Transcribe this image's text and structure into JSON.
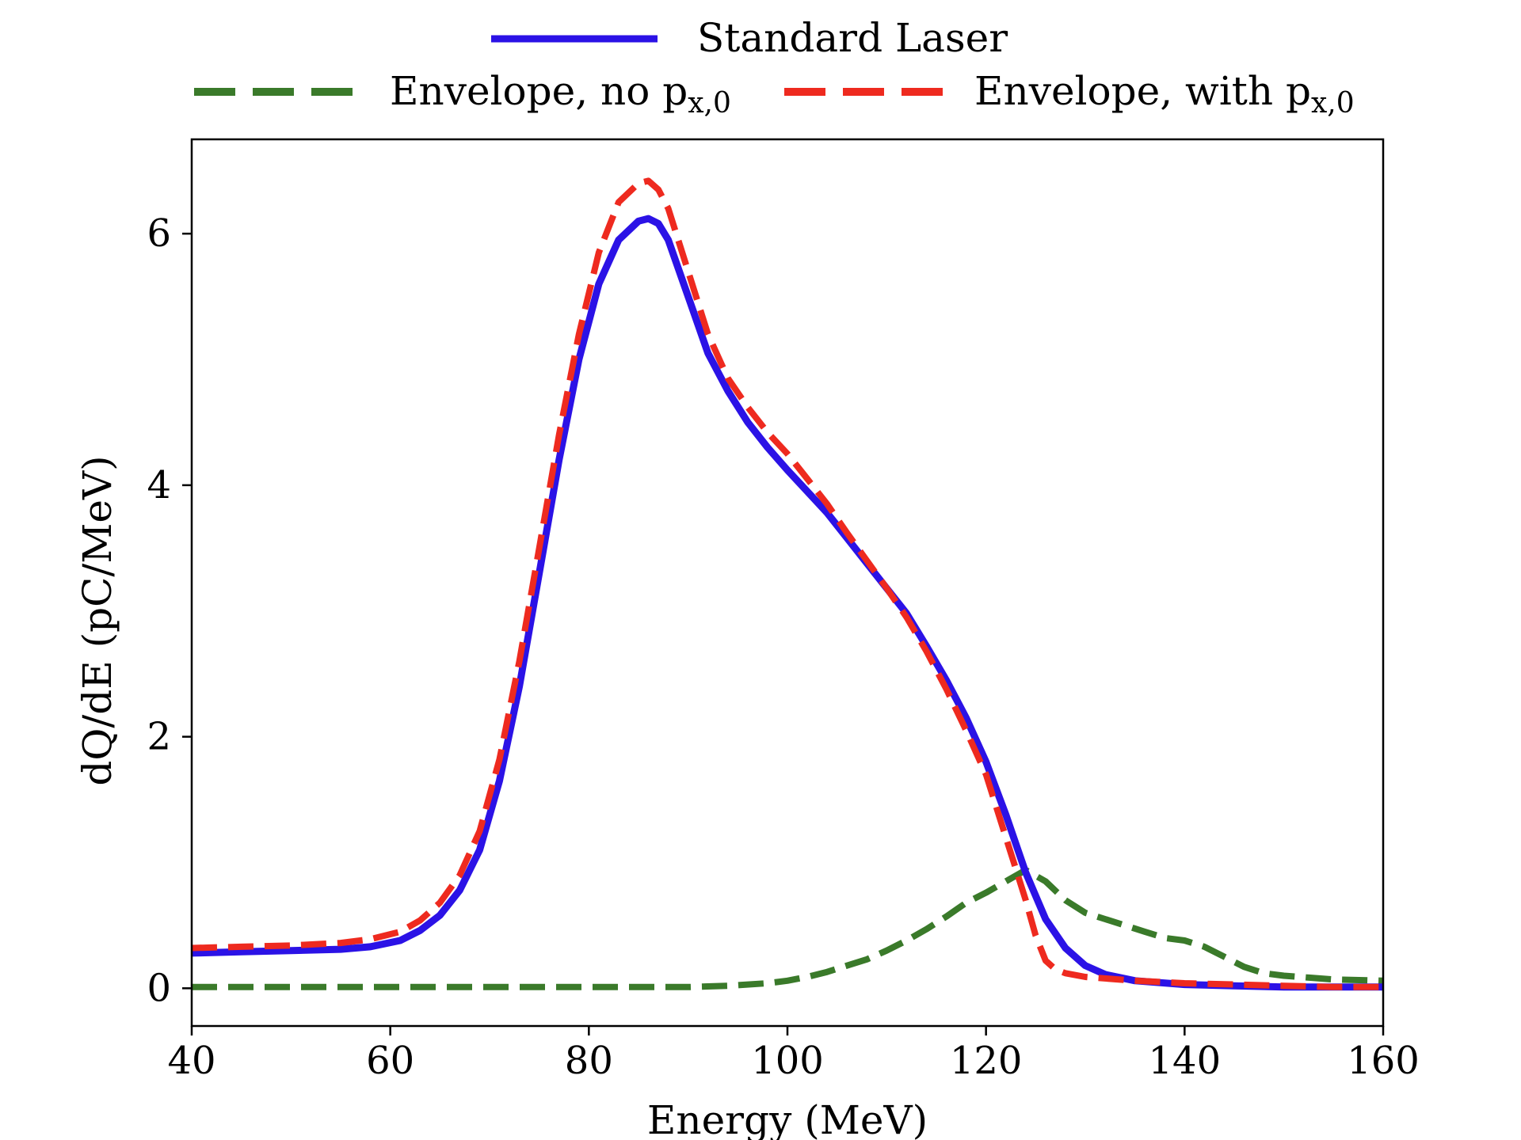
{
  "chart_data": {
    "type": "line",
    "xlabel": "Energy (MeV)",
    "ylabel": "dQ/dE (pC/MeV)",
    "xlim": [
      40,
      160
    ],
    "ylim": [
      -0.3,
      6.75
    ],
    "xticks": [
      40,
      60,
      80,
      100,
      120,
      140,
      160
    ],
    "yticks": [
      0,
      2,
      4,
      6
    ],
    "grid": false,
    "legend_position": "top-center, above plot",
    "series": [
      {
        "name": "Standard Laser",
        "legend_main": "Standard Laser",
        "legend_sub": "",
        "color": "#2b12e6",
        "style": "solid",
        "x": [
          40,
          45,
          50,
          55,
          58,
          61,
          63,
          65,
          67,
          69,
          71,
          73,
          75,
          77,
          79,
          81,
          83,
          85,
          86,
          87,
          88,
          90,
          92,
          94,
          96,
          98,
          100,
          102,
          104,
          106,
          108,
          110,
          112,
          114,
          116,
          118,
          120,
          122,
          124,
          126,
          128,
          130,
          132,
          135,
          140,
          145,
          150,
          155,
          160
        ],
        "y": [
          0.28,
          0.29,
          0.3,
          0.31,
          0.33,
          0.38,
          0.46,
          0.58,
          0.78,
          1.1,
          1.65,
          2.4,
          3.3,
          4.2,
          5.0,
          5.6,
          5.95,
          6.1,
          6.12,
          6.08,
          5.95,
          5.5,
          5.05,
          4.75,
          4.5,
          4.3,
          4.12,
          3.95,
          3.78,
          3.58,
          3.38,
          3.18,
          2.98,
          2.72,
          2.45,
          2.15,
          1.8,
          1.38,
          0.92,
          0.55,
          0.32,
          0.18,
          0.11,
          0.06,
          0.03,
          0.02,
          0.01,
          0.01,
          0.01
        ]
      },
      {
        "name": "Envelope, no px,0",
        "legend_main": "Envelope, no p",
        "legend_sub": "x,0",
        "color": "#3a7a2a",
        "style": "dashed",
        "x": [
          40,
          50,
          60,
          70,
          80,
          90,
          94,
          98,
          100,
          102,
          104,
          106,
          108,
          110,
          112,
          114,
          116,
          118,
          120,
          122,
          124,
          126,
          128,
          130,
          132,
          134,
          136,
          138,
          140,
          142,
          144,
          146,
          148,
          150,
          155,
          160
        ],
        "y": [
          0.01,
          0.01,
          0.01,
          0.01,
          0.01,
          0.01,
          0.02,
          0.04,
          0.06,
          0.09,
          0.13,
          0.18,
          0.23,
          0.3,
          0.38,
          0.47,
          0.57,
          0.68,
          0.76,
          0.85,
          0.94,
          0.85,
          0.7,
          0.6,
          0.55,
          0.5,
          0.45,
          0.4,
          0.38,
          0.33,
          0.25,
          0.17,
          0.12,
          0.1,
          0.07,
          0.06
        ]
      },
      {
        "name": "Envelope, with px,0",
        "legend_main": "Envelope, with p",
        "legend_sub": "x,0",
        "color": "#ee2a1f",
        "style": "dashed",
        "x": [
          40,
          45,
          50,
          55,
          58,
          61,
          63,
          65,
          67,
          69,
          71,
          73,
          75,
          77,
          79,
          81,
          83,
          85,
          86,
          87,
          88,
          90,
          92,
          94,
          96,
          98,
          100,
          102,
          104,
          106,
          108,
          110,
          112,
          114,
          116,
          118,
          120,
          121,
          122,
          123,
          124,
          125,
          126,
          127,
          128,
          130,
          135,
          140,
          145,
          150,
          155,
          160
        ],
        "y": [
          0.32,
          0.33,
          0.34,
          0.36,
          0.39,
          0.45,
          0.54,
          0.68,
          0.9,
          1.25,
          1.82,
          2.6,
          3.5,
          4.4,
          5.2,
          5.85,
          6.25,
          6.4,
          6.42,
          6.35,
          6.2,
          5.7,
          5.2,
          4.85,
          4.62,
          4.42,
          4.25,
          4.05,
          3.85,
          3.62,
          3.4,
          3.18,
          2.95,
          2.68,
          2.38,
          2.05,
          1.7,
          1.45,
          1.2,
          0.95,
          0.7,
          0.42,
          0.22,
          0.15,
          0.12,
          0.09,
          0.06,
          0.04,
          0.03,
          0.02,
          0.01,
          0.01
        ]
      }
    ]
  }
}
